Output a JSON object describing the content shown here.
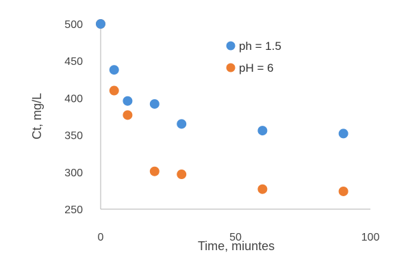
{
  "chart_data": {
    "type": "scatter",
    "title": "",
    "xlabel": "Time, miuntes",
    "ylabel": "Ct, mg/L",
    "xlim": [
      0,
      100
    ],
    "ylim": [
      250,
      500
    ],
    "xticks": [
      "0",
      "50",
      "100"
    ],
    "yticks": [
      "250",
      "300",
      "350",
      "400",
      "450",
      "500"
    ],
    "grid": false,
    "legend_position": "top-right",
    "series": [
      {
        "name": "ph = 1.5",
        "color": "#4a90d9",
        "points": [
          {
            "x": 0,
            "y": 500
          },
          {
            "x": 5,
            "y": 438
          },
          {
            "x": 10,
            "y": 396
          },
          {
            "x": 20,
            "y": 392
          },
          {
            "x": 30,
            "y": 365
          },
          {
            "x": 60,
            "y": 356
          },
          {
            "x": 90,
            "y": 352
          }
        ]
      },
      {
        "name": "pH = 6",
        "color": "#ed7d31",
        "points": [
          {
            "x": 0,
            "y": 500
          },
          {
            "x": 5,
            "y": 410
          },
          {
            "x": 10,
            "y": 377
          },
          {
            "x": 20,
            "y": 301
          },
          {
            "x": 30,
            "y": 297
          },
          {
            "x": 60,
            "y": 277
          },
          {
            "x": 90,
            "y": 274
          }
        ]
      }
    ]
  }
}
